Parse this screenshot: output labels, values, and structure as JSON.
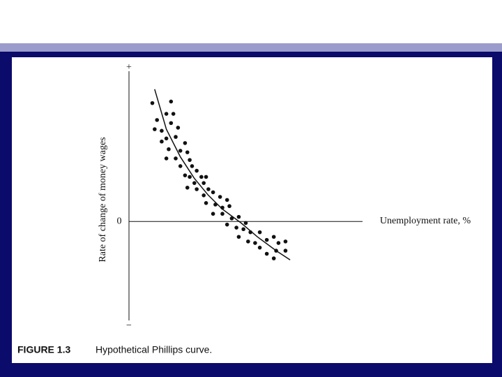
{
  "chart_data": {
    "type": "scatter",
    "xlabel": "Unemployment rate, %",
    "ylabel": "Rate of change of money wages",
    "figure_label": "FIGURE 1.3",
    "caption": "Hypothetical Phillips curve.",
    "color": "#111111",
    "xlim": [
      0,
      1
    ],
    "ylim": [
      -0.68,
      1
    ],
    "yticks": [
      {
        "value": 1,
        "label": "+"
      },
      0,
      {
        "value": -0.68,
        "label": "−"
      }
    ],
    "x": [
      0.1,
      0.18,
      0.16,
      0.19,
      0.12,
      0.18,
      0.11,
      0.21,
      0.14,
      0.16,
      0.14,
      0.2,
      0.24,
      0.17,
      0.22,
      0.25,
      0.16,
      0.2,
      0.26,
      0.22,
      0.27,
      0.29,
      0.24,
      0.31,
      0.33,
      0.26,
      0.28,
      0.32,
      0.25,
      0.29,
      0.34,
      0.36,
      0.32,
      0.39,
      0.42,
      0.33,
      0.37,
      0.43,
      0.4,
      0.36,
      0.4,
      0.47,
      0.44,
      0.5,
      0.42,
      0.46,
      0.49,
      0.56,
      0.52,
      0.62,
      0.47,
      0.59,
      0.64,
      0.51,
      0.54,
      0.67,
      0.56,
      0.63,
      0.67,
      0.59,
      0.62
    ],
    "values": [
      0.77,
      0.78,
      0.7,
      0.7,
      0.66,
      0.64,
      0.6,
      0.61,
      0.59,
      0.54,
      0.52,
      0.55,
      0.51,
      0.47,
      0.46,
      0.45,
      0.41,
      0.41,
      0.4,
      0.36,
      0.36,
      0.33,
      0.3,
      0.29,
      0.29,
      0.29,
      0.25,
      0.25,
      0.22,
      0.21,
      0.21,
      0.19,
      0.17,
      0.16,
      0.14,
      0.12,
      0.11,
      0.1,
      0.09,
      0.05,
      0.05,
      0.03,
      0.02,
      -0.01,
      -0.02,
      -0.04,
      -0.05,
      -0.07,
      -0.07,
      -0.1,
      -0.1,
      -0.12,
      -0.14,
      -0.13,
      -0.14,
      -0.13,
      -0.17,
      -0.19,
      -0.19,
      -0.21,
      -0.24
    ],
    "curve": {
      "x": [
        0.11,
        0.16,
        0.22,
        0.28,
        0.34,
        0.4,
        0.48,
        0.55,
        0.63,
        0.69
      ],
      "y": [
        0.86,
        0.6,
        0.42,
        0.28,
        0.17,
        0.08,
        -0.01,
        -0.1,
        -0.19,
        -0.25
      ]
    }
  }
}
